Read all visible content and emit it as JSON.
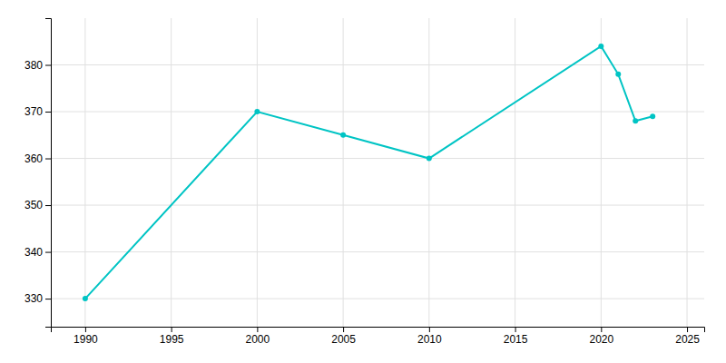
{
  "chart_data": {
    "type": "line",
    "x": [
      1990,
      2000,
      2005,
      2010,
      2020,
      2021,
      2022,
      2023
    ],
    "values": [
      330,
      370,
      365,
      360,
      384,
      378,
      368,
      369
    ],
    "color": "#00C4C4",
    "marker": "circle",
    "xlim": [
      1988,
      2026
    ],
    "ylim": [
      324,
      390
    ],
    "xticks": [
      1990,
      1995,
      2000,
      2005,
      2010,
      2015,
      2020,
      2025
    ],
    "yticks": [
      330,
      340,
      350,
      360,
      370,
      380
    ],
    "grid": true
  }
}
